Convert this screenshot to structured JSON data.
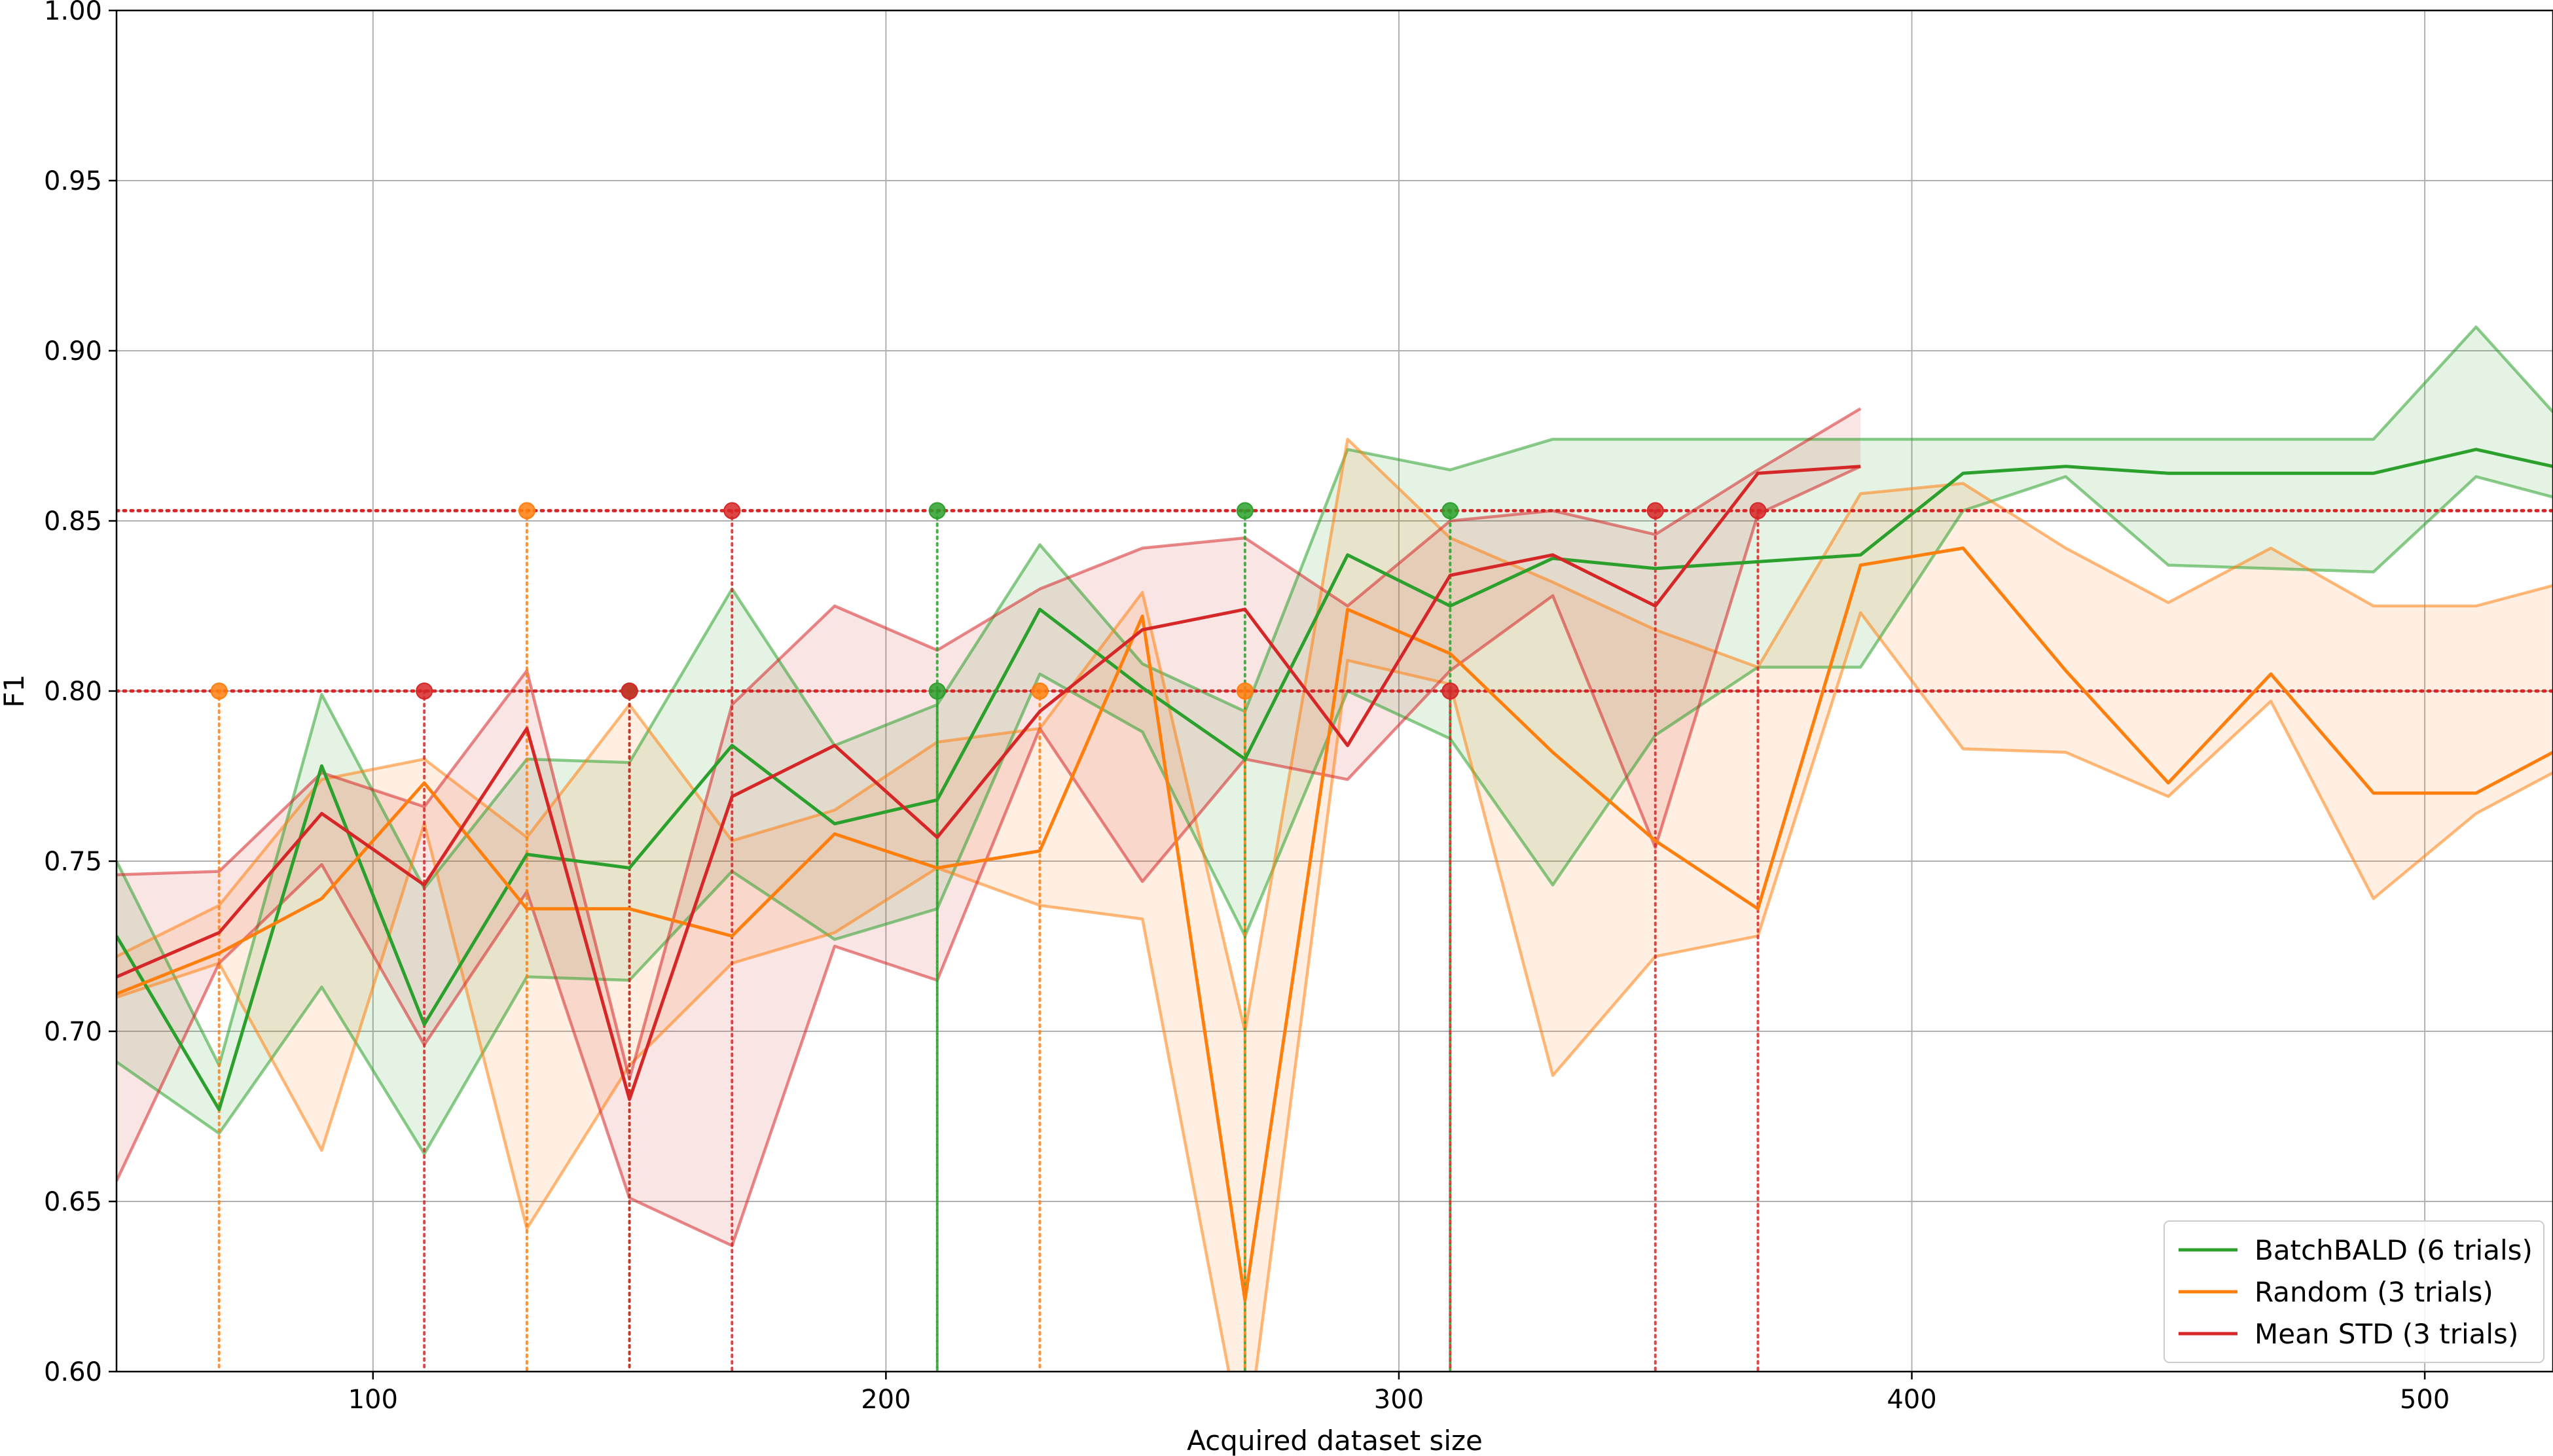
{
  "chart_data": {
    "type": "line",
    "title": "",
    "xlabel": "Acquired dataset size",
    "ylabel": "F1",
    "xlim": [
      50,
      525
    ],
    "ylim": [
      0.6,
      1.0
    ],
    "xticks": [
      100,
      200,
      300,
      400,
      500
    ],
    "yticks": [
      0.6,
      0.65,
      0.7,
      0.75,
      0.8,
      0.85,
      0.9,
      0.95,
      1.0
    ],
    "grid": true,
    "legend_position": "lower-right",
    "thresholds": [
      0.8,
      0.853
    ],
    "threshold_color": "#d62728",
    "series": [
      {
        "name": "BatchBALD (6 trials)",
        "color": "#2ca02c",
        "x": [
          50,
          70,
          90,
          110,
          130,
          150,
          170,
          190,
          210,
          230,
          250,
          270,
          290,
          310,
          330,
          350,
          370,
          390,
          410,
          430,
          450,
          470,
          490,
          510,
          525
        ],
        "mean": [
          0.728,
          0.677,
          0.778,
          0.702,
          0.752,
          0.748,
          0.784,
          0.761,
          0.768,
          0.824,
          0.801,
          0.78,
          0.84,
          0.825,
          0.839,
          0.836,
          0.838,
          0.84,
          0.864,
          0.866,
          0.864,
          0.864,
          0.864,
          0.871,
          0.866
        ],
        "upper": [
          0.75,
          0.69,
          0.799,
          0.742,
          0.78,
          0.779,
          0.83,
          0.784,
          0.796,
          0.843,
          0.808,
          0.794,
          0.871,
          0.865,
          0.874,
          0.874,
          0.874,
          0.874,
          0.874,
          0.874,
          0.874,
          0.874,
          0.874,
          0.907,
          0.882
        ],
        "lower": [
          0.691,
          0.67,
          0.713,
          0.664,
          0.716,
          0.715,
          0.747,
          0.727,
          0.736,
          0.805,
          0.788,
          0.728,
          0.8,
          0.786,
          0.743,
          0.787,
          0.807,
          0.807,
          0.853,
          0.863,
          0.837,
          0.836,
          0.835,
          0.863,
          0.857
        ],
        "markers": [
          {
            "x": 150,
            "y": 0.8
          },
          {
            "x": 210,
            "y": 0.8
          },
          {
            "x": 210,
            "y": 0.853
          },
          {
            "x": 270,
            "y": 0.853
          },
          {
            "x": 310,
            "y": 0.853
          }
        ]
      },
      {
        "name": "Random (3 trials)",
        "color": "#ff7f0e",
        "x": [
          50,
          70,
          90,
          110,
          130,
          150,
          170,
          190,
          210,
          230,
          250,
          270,
          290,
          310,
          330,
          350,
          370,
          390,
          410,
          430,
          450,
          470,
          490,
          510,
          525
        ],
        "mean": [
          0.711,
          0.723,
          0.739,
          0.773,
          0.736,
          0.736,
          0.728,
          0.758,
          0.748,
          0.753,
          0.822,
          0.621,
          0.824,
          0.811,
          0.782,
          0.756,
          0.736,
          0.837,
          0.842,
          0.806,
          0.773,
          0.805,
          0.77,
          0.77,
          0.782
        ],
        "upper": [
          0.722,
          0.737,
          0.774,
          0.78,
          0.757,
          0.796,
          0.756,
          0.765,
          0.785,
          0.789,
          0.829,
          0.7,
          0.874,
          0.845,
          0.832,
          0.818,
          0.807,
          0.858,
          0.861,
          0.842,
          0.826,
          0.842,
          0.825,
          0.825,
          0.831
        ],
        "lower": [
          0.71,
          0.72,
          0.665,
          0.761,
          0.642,
          0.69,
          0.72,
          0.729,
          0.748,
          0.737,
          0.733,
          0.575,
          0.809,
          0.802,
          0.687,
          0.722,
          0.728,
          0.823,
          0.783,
          0.782,
          0.769,
          0.797,
          0.739,
          0.764,
          0.776
        ],
        "markers": [
          {
            "x": 70,
            "y": 0.8
          },
          {
            "x": 130,
            "y": 0.853
          },
          {
            "x": 230,
            "y": 0.8
          },
          {
            "x": 270,
            "y": 0.8
          }
        ]
      },
      {
        "name": "Mean STD (3 trials)",
        "color": "#d62728",
        "x": [
          50,
          70,
          90,
          110,
          130,
          150,
          170,
          190,
          210,
          230,
          250,
          270,
          290,
          310,
          330,
          350,
          370,
          390
        ],
        "mean": [
          0.716,
          0.729,
          0.764,
          0.743,
          0.789,
          0.68,
          0.769,
          0.784,
          0.757,
          0.794,
          0.818,
          0.824,
          0.784,
          0.834,
          0.84,
          0.825,
          0.864,
          0.866
        ],
        "upper": [
          0.746,
          0.747,
          0.776,
          0.766,
          0.806,
          0.686,
          0.796,
          0.825,
          0.812,
          0.83,
          0.842,
          0.845,
          0.825,
          0.85,
          0.853,
          0.846,
          0.865,
          0.883
        ],
        "lower": [
          0.656,
          0.72,
          0.749,
          0.696,
          0.741,
          0.651,
          0.637,
          0.725,
          0.715,
          0.789,
          0.744,
          0.78,
          0.774,
          0.806,
          0.828,
          0.754,
          0.852,
          0.866
        ],
        "markers": [
          {
            "x": 110,
            "y": 0.8
          },
          {
            "x": 150,
            "y": 0.8
          },
          {
            "x": 170,
            "y": 0.853
          },
          {
            "x": 310,
            "y": 0.8
          },
          {
            "x": 350,
            "y": 0.853
          },
          {
            "x": 370,
            "y": 0.853
          }
        ]
      }
    ]
  }
}
